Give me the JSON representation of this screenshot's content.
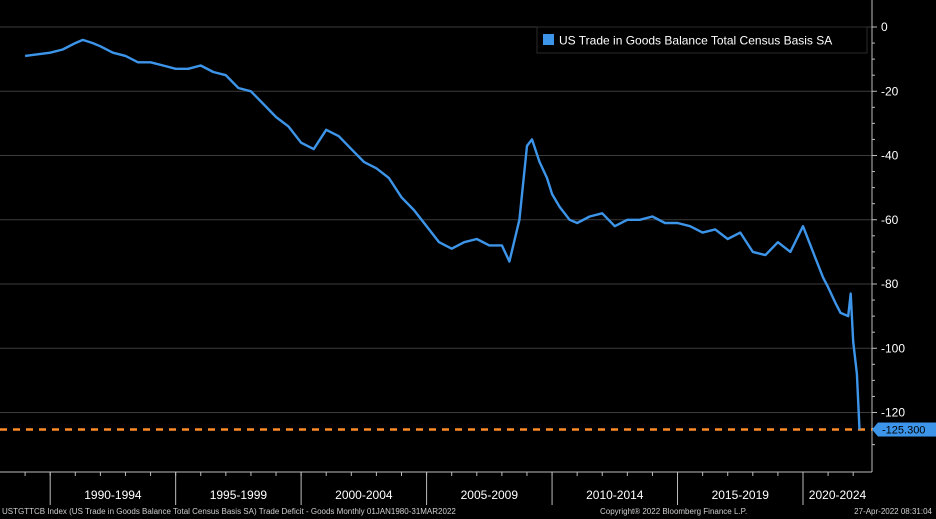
{
  "chart_data": {
    "type": "line",
    "legend": {
      "label": "US Trade in Goods Balance Total Census Basis SA",
      "placement": "top-right"
    },
    "series": [
      {
        "name": "US Trade in Goods Balance Total Census Basis SA",
        "color": "#3d95ea",
        "x": [
          1989.0,
          1989.5,
          1990.0,
          1990.5,
          1991.0,
          1991.3,
          1991.7,
          1992.0,
          1992.5,
          1993.0,
          1993.5,
          1994.0,
          1994.5,
          1995.0,
          1995.5,
          1996.0,
          1996.5,
          1997.0,
          1997.5,
          1998.0,
          1998.5,
          1999.0,
          1999.5,
          2000.0,
          2000.5,
          2001.0,
          2001.5,
          2002.0,
          2002.5,
          2003.0,
          2003.5,
          2004.0,
          2004.5,
          2005.0,
          2005.5,
          2006.0,
          2006.5,
          2007.0,
          2007.5,
          2008.0,
          2008.3,
          2008.7,
          2009.0,
          2009.2,
          2009.5,
          2009.8,
          2010.0,
          2010.3,
          2010.7,
          2011.0,
          2011.5,
          2012.0,
          2012.5,
          2013.0,
          2013.5,
          2014.0,
          2014.5,
          2015.0,
          2015.5,
          2016.0,
          2016.5,
          2017.0,
          2017.5,
          2018.0,
          2018.5,
          2019.0,
          2019.5,
          2020.0,
          2020.3,
          2020.5,
          2020.8,
          2021.0,
          2021.3,
          2021.5,
          2021.8,
          2021.9,
          2022.0,
          2022.15,
          2022.25
        ],
        "values": [
          -9,
          -8.5,
          -8,
          -7,
          -5,
          -4,
          -5,
          -6,
          -8,
          -9,
          -11,
          -11,
          -12,
          -13,
          -13,
          -12,
          -14,
          -15,
          -19,
          -20,
          -24,
          -28,
          -31,
          -36,
          -38,
          -32,
          -34,
          -38,
          -42,
          -44,
          -47,
          -53,
          -57,
          -62,
          -67,
          -69,
          -67,
          -66,
          -68,
          -68,
          -73,
          -60,
          -37,
          -35,
          -42,
          -47,
          -52,
          -56,
          -60,
          -61,
          -59,
          -58,
          -62,
          -60,
          -60,
          -59,
          -61,
          -61,
          -62,
          -64,
          -63,
          -66,
          -64,
          -70,
          -71,
          -67,
          -70,
          -62,
          -68,
          -72,
          -78,
          -81,
          -86,
          -89,
          -90,
          -83,
          -98,
          -108,
          -125.3
        ]
      }
    ],
    "y_axis": {
      "ticks": [
        "0",
        "-20",
        "-40",
        "-60",
        "-80",
        "-100",
        "-120"
      ],
      "tick_values": [
        0,
        -20,
        -40,
        -60,
        -80,
        -100,
        -120
      ],
      "range": [
        -137,
        5
      ],
      "side": "right",
      "grid": true
    },
    "x_axis": {
      "range": [
        1988.0,
        2022.75
      ],
      "category_labels": [
        "1990-1994",
        "1995-1999",
        "2000-2004",
        "2005-2009",
        "2010-2014",
        "2015-2019",
        "2020-2024"
      ],
      "category_starts": [
        1990,
        1995,
        2000,
        2005,
        2010,
        2015,
        2020
      ]
    },
    "reference_line": {
      "value": -125.3,
      "label": "-125.300",
      "color": "#ff8c28",
      "style": "dashed"
    }
  },
  "footer": {
    "left": "USTGTTCB Index (US Trade in Goods Balance Total Census Basis SA) Trade Deficit - Goods  Monthly 01JAN1980-31MAR2022",
    "center": "Copyright® 2022 Bloomberg Finance L.P.",
    "right": "27-Apr-2022 08:31:04"
  }
}
